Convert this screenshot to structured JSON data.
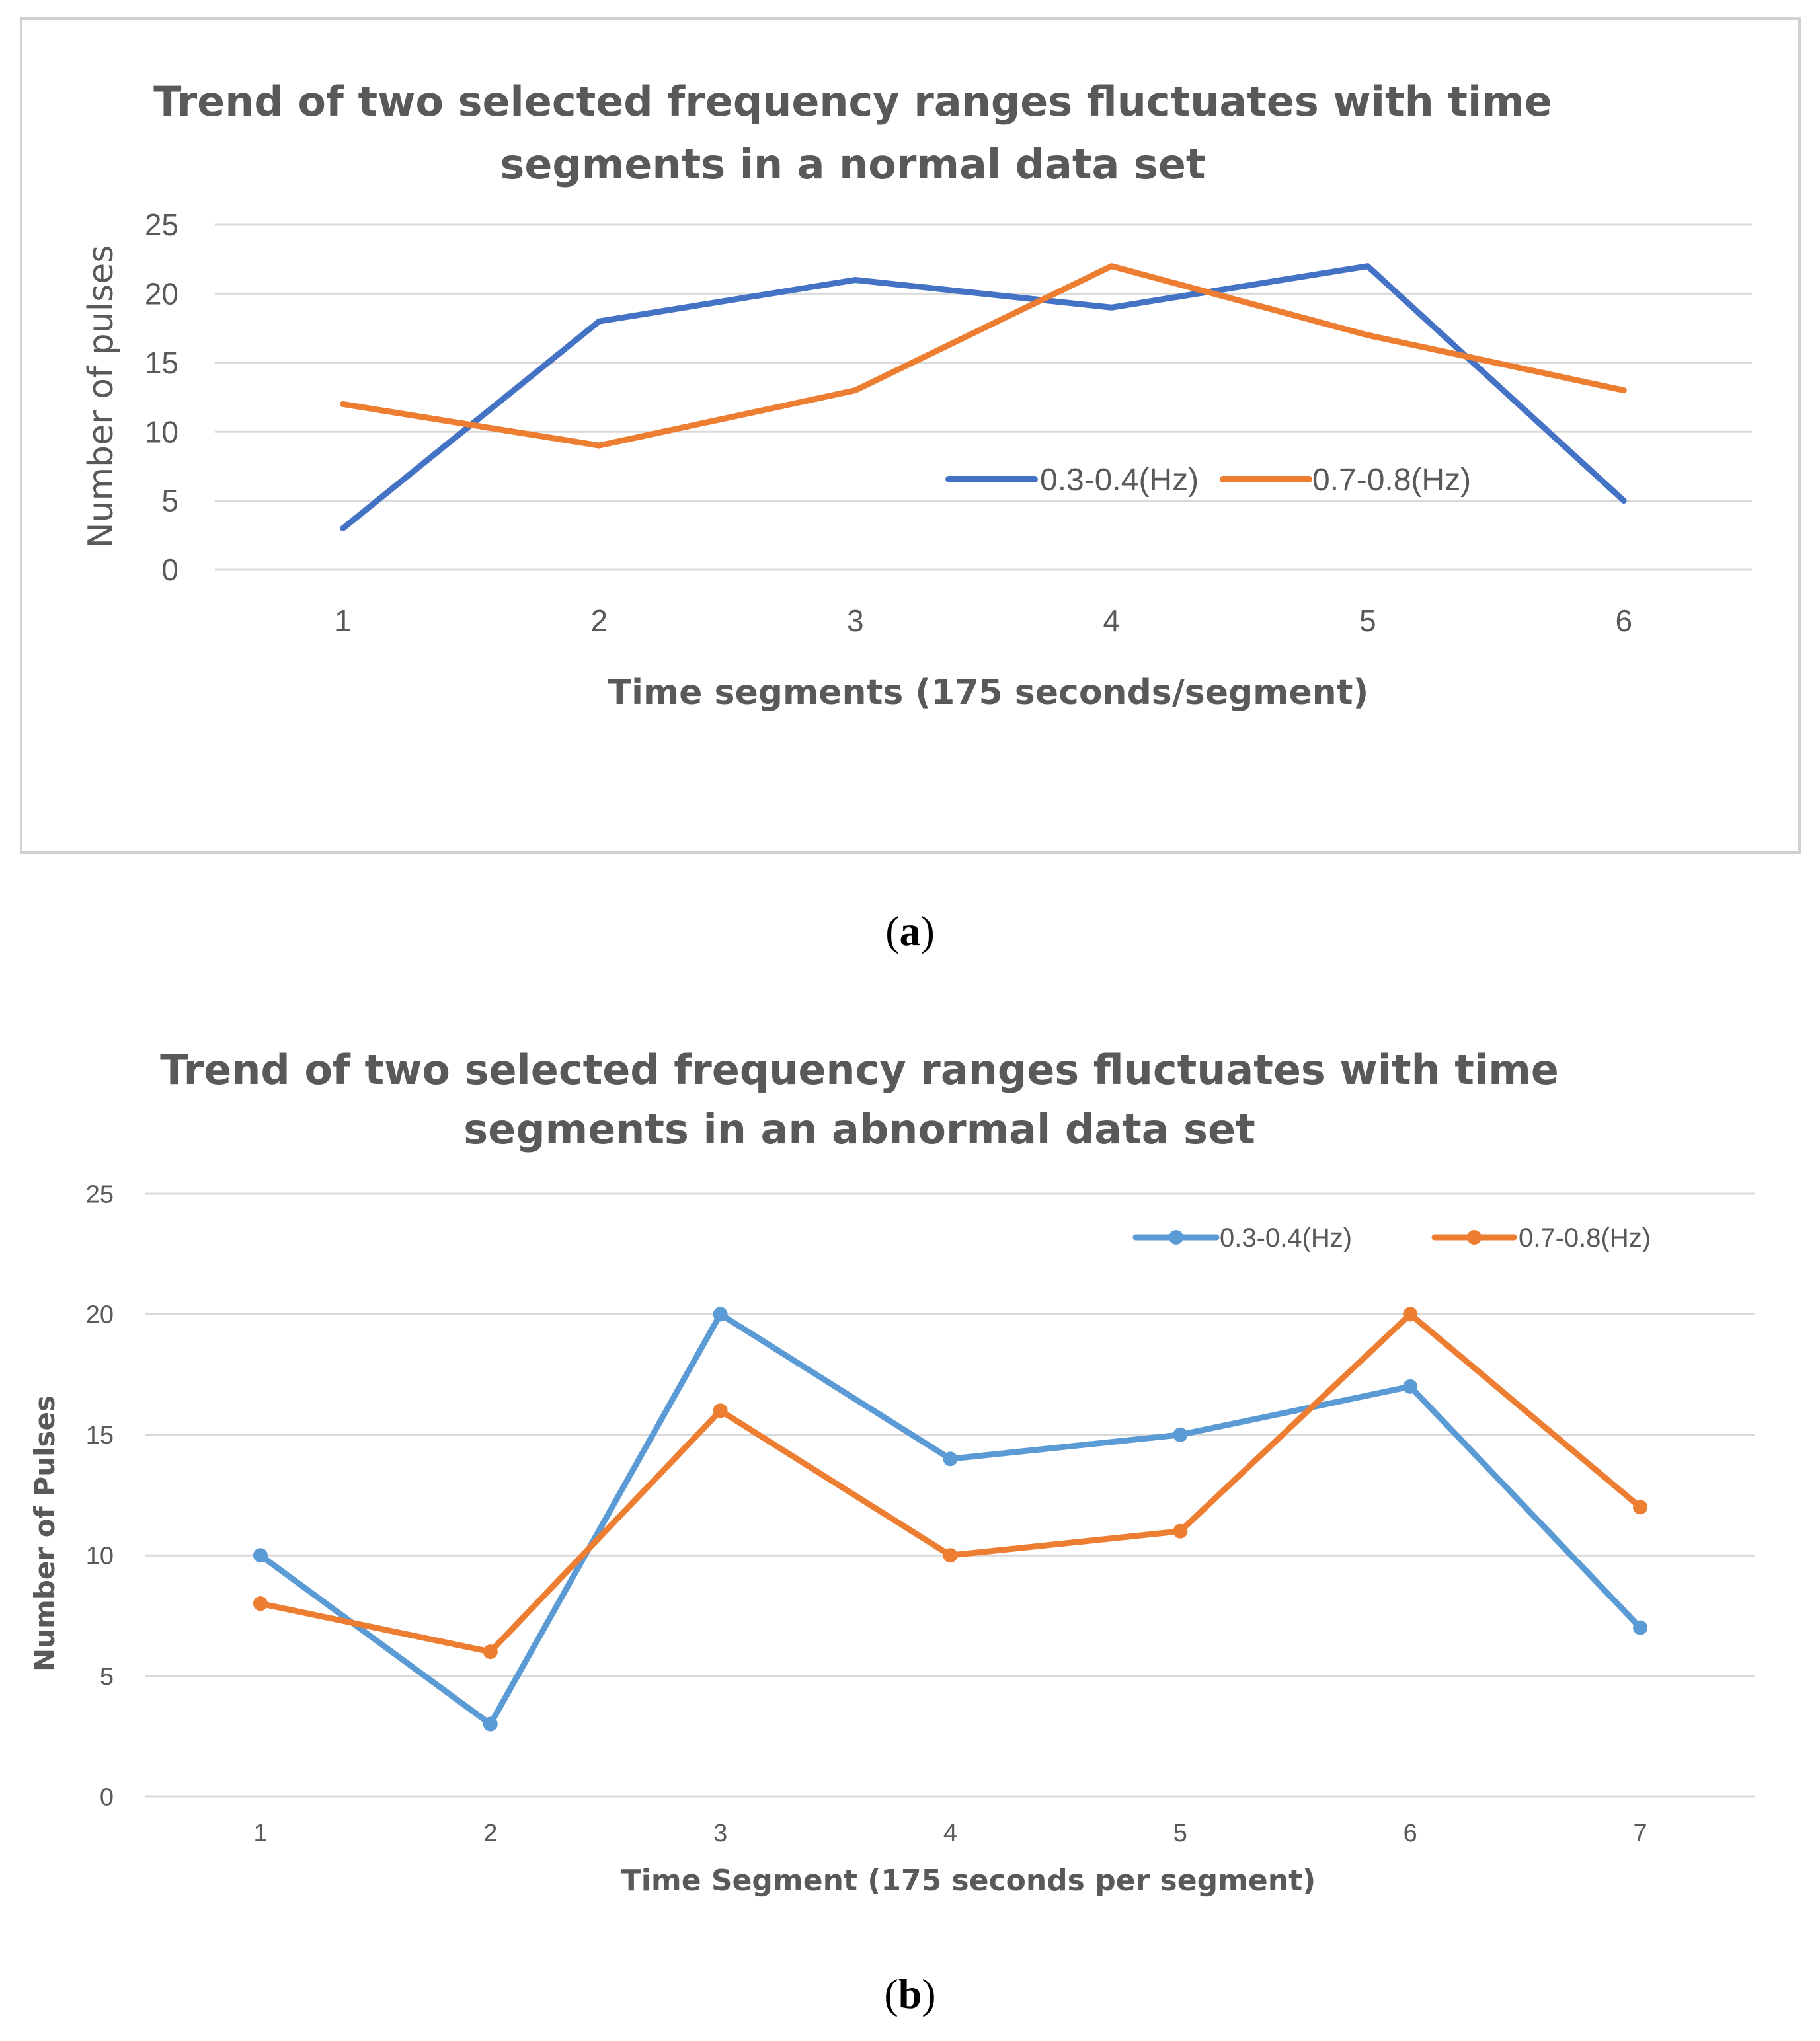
{
  "chart_data": [
    {
      "type": "line",
      "panel": "a",
      "title": "Trend of two selected frequency ranges fluctuates with time segments in a normal data set",
      "title_lines": [
        "Trend of two selected frequency ranges fluctuates with time",
        "segments in a normal data set"
      ],
      "xlabel": "Time segments (175 seconds/segment)",
      "ylabel": "Number of pulses",
      "categories": [
        "1",
        "2",
        "3",
        "4",
        "5",
        "6"
      ],
      "yticks": [
        0,
        5,
        10,
        15,
        20,
        25
      ],
      "ylim": [
        0,
        25
      ],
      "markers": false,
      "legend_position": "center-right",
      "series": [
        {
          "name": "0.3-0.4(Hz)",
          "color": "#4472C4",
          "values": [
            3,
            18,
            21,
            19,
            22,
            5
          ]
        },
        {
          "name": "0.7-0.8(Hz)",
          "color": "#ED7D31",
          "values": [
            12,
            9,
            13,
            22,
            17,
            13
          ]
        }
      ]
    },
    {
      "type": "line",
      "panel": "b",
      "title": "Trend of two selected frequency ranges fluctuates with time segments in an abnormal data set",
      "title_lines": [
        "Trend of two selected frequency ranges fluctuates with time",
        "segments in an abnormal data set"
      ],
      "xlabel": "Time Segment (175 seconds per segment)",
      "ylabel": "Number of Pulses",
      "categories": [
        "1",
        "2",
        "3",
        "4",
        "5",
        "6",
        "7"
      ],
      "yticks": [
        0,
        5,
        10,
        15,
        20,
        25
      ],
      "ylim": [
        0,
        25
      ],
      "markers": true,
      "legend_position": "top-right",
      "series": [
        {
          "name": "0.3-0.4(Hz)",
          "color": "#5B9BD5",
          "values": [
            10,
            3,
            20,
            14,
            15,
            17,
            7
          ]
        },
        {
          "name": "0.7-0.8(Hz)",
          "color": "#ED7D31",
          "values": [
            8,
            6,
            16,
            10,
            11,
            20,
            12
          ]
        }
      ]
    }
  ],
  "captions": {
    "a": {
      "open": "(",
      "letter": "a",
      "close": ")"
    },
    "b": {
      "open": "(",
      "letter": "b",
      "close": ")"
    }
  }
}
